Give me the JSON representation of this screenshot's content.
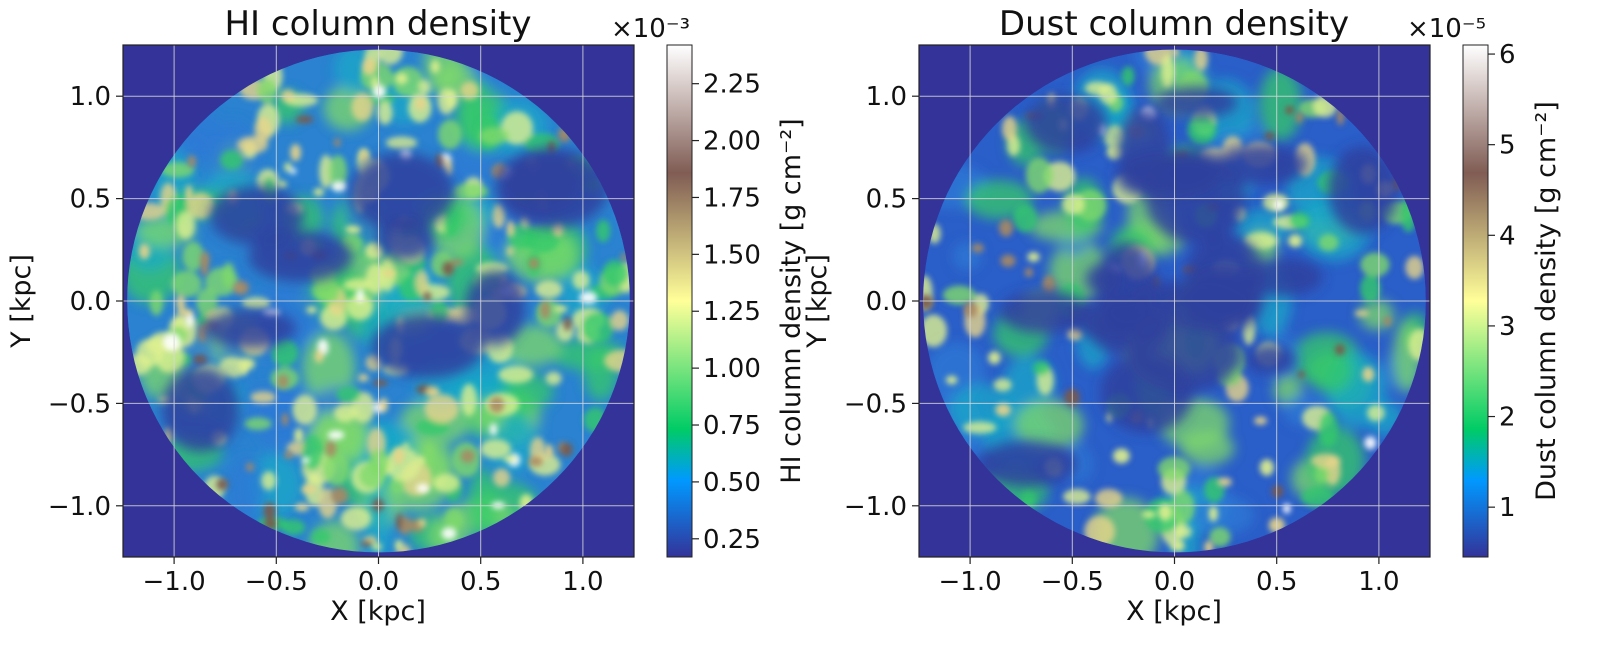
{
  "chart_data": [
    {
      "type": "heatmap",
      "title": "HI column density",
      "xlabel": "X [kpc]",
      "ylabel": "Y [kpc]",
      "xlim": [
        -1.25,
        1.25
      ],
      "ylim": [
        -1.25,
        1.25
      ],
      "xticks": [
        -1.0,
        -0.5,
        0.0,
        0.5,
        1.0
      ],
      "xtick_labels": [
        "−1.0",
        "−0.5",
        "0.0",
        "0.5",
        "1.0"
      ],
      "yticks": [
        -1.0,
        -0.5,
        0.0,
        0.5,
        1.0
      ],
      "ytick_labels": [
        "−1.0",
        "−0.5",
        "0.0",
        "0.5",
        "1.0"
      ],
      "grid": true,
      "colormap": "terrain",
      "colorbar": {
        "label": "HI column density [g cm⁻²]",
        "multiplier": "×10⁻³",
        "range": [
          0.17,
          2.42
        ],
        "ticks": [
          0.25,
          0.5,
          0.75,
          1.0,
          1.25,
          1.5,
          1.75,
          2.0,
          2.25
        ],
        "tick_labels": [
          "0.25",
          "0.50",
          "0.75",
          "1.00",
          "1.25",
          "1.50",
          "1.75",
          "2.00",
          "2.25"
        ]
      },
      "disk_radius": 1.23
    },
    {
      "type": "heatmap",
      "title": "Dust column density",
      "xlabel": "X [kpc]",
      "ylabel": "Y [kpc]",
      "xlim": [
        -1.25,
        1.25
      ],
      "ylim": [
        -1.25,
        1.25
      ],
      "xticks": [
        -1.0,
        -0.5,
        0.0,
        0.5,
        1.0
      ],
      "xtick_labels": [
        "−1.0",
        "−0.5",
        "0.0",
        "0.5",
        "1.0"
      ],
      "yticks": [
        -1.0,
        -0.5,
        0.0,
        0.5,
        1.0
      ],
      "ytick_labels": [
        "−1.0",
        "−0.5",
        "0.0",
        "0.5",
        "1.0"
      ],
      "grid": true,
      "colormap": "terrain",
      "colorbar": {
        "label": "Dust column density [g cm⁻²]",
        "multiplier": "×10⁻⁵",
        "range": [
          0.45,
          6.1
        ],
        "ticks": [
          1,
          2,
          3,
          4,
          5,
          6
        ],
        "tick_labels": [
          "1",
          "2",
          "3",
          "4",
          "5",
          "6"
        ]
      },
      "disk_radius": 1.23
    }
  ]
}
